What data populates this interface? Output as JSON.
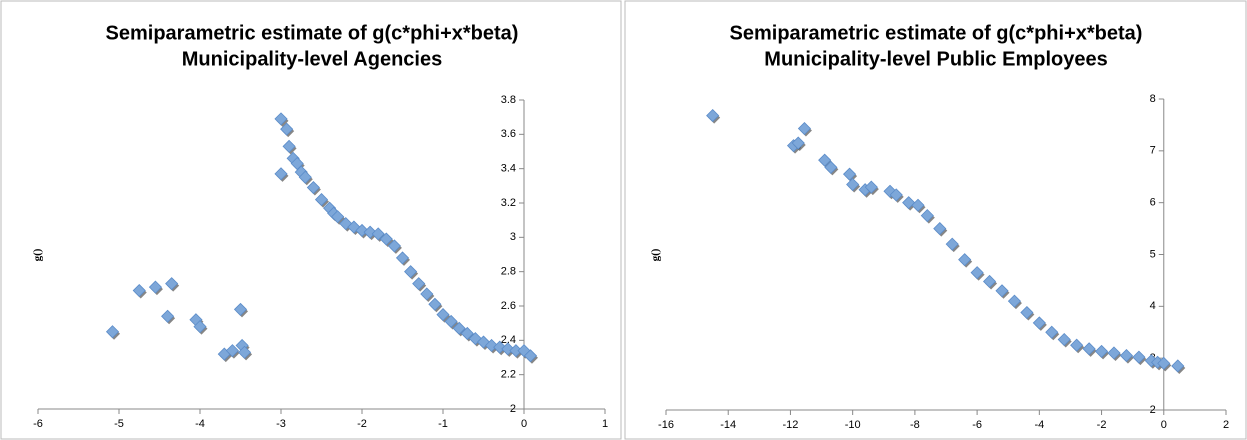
{
  "chart_data": [
    {
      "type": "scatter",
      "title": "Semiparametric estimate of g(c*phi+x*beta)",
      "subtitle": "Municipality-level Agencies",
      "y_label": "g()",
      "xlim": [
        -6,
        1
      ],
      "xticks": [
        -6,
        -5,
        -4,
        -3,
        -2,
        -1,
        0,
        1
      ],
      "ylim": [
        2,
        3.8
      ],
      "yticks": [
        2,
        2.2,
        2.4,
        2.6,
        2.8,
        3,
        3.2,
        3.4,
        3.6,
        3.8
      ],
      "series": [
        {
          "color": "#7da7d9",
          "x": [
            -5.08,
            -4.75,
            -4.55,
            -4.35,
            -4.4,
            -4.05,
            -4.0,
            -3.7,
            -3.6,
            -3.5,
            -3.48,
            -3.45,
            -3.0,
            -3.0,
            -2.93,
            -2.9,
            -2.85,
            -2.8,
            -2.75,
            -2.7,
            -2.6,
            -2.5,
            -2.4,
            -2.35,
            -2.3,
            -2.2,
            -2.1,
            -2.0,
            -1.9,
            -1.8,
            -1.7,
            -1.6,
            -1.5,
            -1.4,
            -1.3,
            -1.2,
            -1.1,
            -1.0,
            -0.9,
            -0.8,
            -0.7,
            -0.6,
            -0.5,
            -0.4,
            -0.3,
            -0.2,
            -0.1,
            0.0,
            0.08
          ],
          "values": [
            2.45,
            2.69,
            2.71,
            2.73,
            2.54,
            2.52,
            2.48,
            2.32,
            2.34,
            2.58,
            2.37,
            2.33,
            3.37,
            3.69,
            3.63,
            3.53,
            3.46,
            3.43,
            3.38,
            3.35,
            3.29,
            3.22,
            3.17,
            3.14,
            3.12,
            3.08,
            3.06,
            3.04,
            3.03,
            3.02,
            2.99,
            2.95,
            2.88,
            2.8,
            2.73,
            2.67,
            2.61,
            2.55,
            2.51,
            2.47,
            2.44,
            2.41,
            2.39,
            2.37,
            2.36,
            2.35,
            2.34,
            2.34,
            2.31
          ]
        }
      ]
    },
    {
      "type": "scatter",
      "title": "Semiparametric estimate of g(c*phi+x*beta)",
      "subtitle": "Municipality-level Public Employees",
      "y_label": "g()",
      "xlim": [
        -16,
        2
      ],
      "xticks": [
        -16,
        -14,
        -12,
        -10,
        -8,
        -6,
        -4,
        -2,
        0,
        2
      ],
      "ylim": [
        2,
        8
      ],
      "yticks": [
        2,
        3,
        4,
        5,
        6,
        7,
        8
      ],
      "series": [
        {
          "color": "#7da7d9",
          "x": [
            -14.5,
            -11.9,
            -11.75,
            -11.55,
            -10.9,
            -10.7,
            -10.1,
            -10.0,
            -9.6,
            -9.4,
            -8.8,
            -8.6,
            -8.2,
            -7.9,
            -7.6,
            -7.2,
            -6.8,
            -6.4,
            -6.0,
            -5.6,
            -5.2,
            -4.8,
            -4.4,
            -4.0,
            -3.6,
            -3.2,
            -2.8,
            -2.4,
            -2.0,
            -1.6,
            -1.2,
            -0.8,
            -0.4,
            -0.2,
            0.0,
            0.45
          ],
          "values": [
            7.68,
            7.1,
            7.15,
            7.43,
            6.82,
            6.68,
            6.55,
            6.35,
            6.25,
            6.3,
            6.22,
            6.15,
            6.0,
            5.95,
            5.75,
            5.5,
            5.2,
            4.9,
            4.65,
            4.48,
            4.3,
            4.1,
            3.88,
            3.68,
            3.5,
            3.36,
            3.25,
            3.18,
            3.13,
            3.1,
            3.05,
            3.02,
            2.95,
            2.92,
            2.9,
            2.85
          ]
        }
      ]
    }
  ]
}
